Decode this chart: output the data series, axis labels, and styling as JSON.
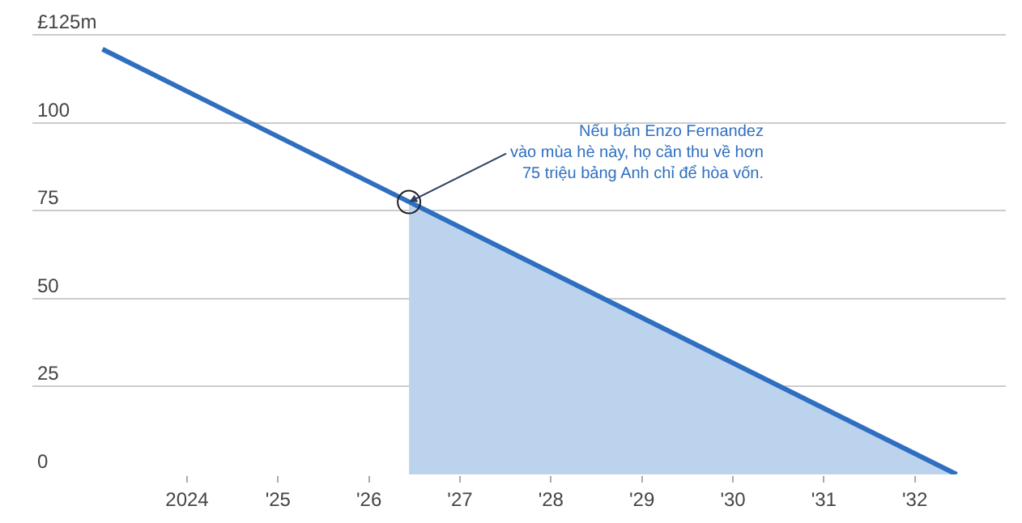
{
  "chart_data": {
    "type": "line",
    "series": [
      {
        "color": "#2f6fc0",
        "x": [
          2023.07,
          2032.46
        ],
        "values": [
          121,
          0
        ]
      },
      {
        "type": "area",
        "color": "#bcd3ee",
        "x": [
          2026.44,
          2032.46
        ],
        "values": [
          77.5,
          0
        ]
      }
    ],
    "xlim": [
      2022.3,
      2033
    ],
    "xticks": [
      {
        "value": 2024,
        "label": "2024"
      },
      {
        "value": 2025,
        "label": "'25"
      },
      {
        "value": 2026,
        "label": "'26"
      },
      {
        "value": 2027,
        "label": "'27"
      },
      {
        "value": 2028,
        "label": "'28"
      },
      {
        "value": 2029,
        "label": "'29"
      },
      {
        "value": 2030,
        "label": "'30"
      },
      {
        "value": 2031,
        "label": "'31"
      },
      {
        "value": 2032,
        "label": "'32"
      }
    ],
    "ylim": [
      0,
      135
    ],
    "yticks": [
      0,
      25,
      50,
      75,
      100,
      {
        "value": 125,
        "label": "£125m"
      }
    ],
    "grid": "y",
    "annotations": [
      {
        "text": "Nếu bán Enzo Fernandez\nvào mùa hè này, họ cần thu về hơn\n75 triệu bảng Anh chỉ để hòa vốn.",
        "x": 2026.44,
        "y": 77.5
      }
    ]
  }
}
